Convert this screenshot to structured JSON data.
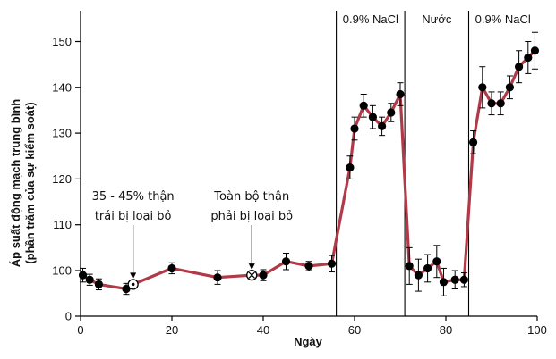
{
  "chart_data": {
    "type": "line",
    "xlabel": "Ngày",
    "ylabel_line1": "Áp suất động mạch trung bình",
    "ylabel_line2": "(phần trăm của sự kiểm soát)",
    "xlim": [
      0,
      100
    ],
    "ylim": [
      0,
      155
    ],
    "xticks": [
      0,
      20,
      40,
      60,
      80,
      100
    ],
    "yticks": [
      0,
      100,
      110,
      120,
      130,
      140,
      150
    ],
    "grid": false,
    "line_color": "#b03a48",
    "marker_color": "#000000",
    "phase_boundaries": [
      56,
      71,
      85
    ],
    "phases": [
      {
        "label": "0.9% NaCl",
        "x_start": 56,
        "x_end": 71
      },
      {
        "label": "Nước",
        "x_start": 71,
        "x_end": 85
      },
      {
        "label": "0.9% NaCl",
        "x_start": 85,
        "x_end": 100
      }
    ],
    "annotations": [
      {
        "line1": "35 - 45% thận",
        "line2": "trái bị loại bỏ",
        "x": 11.5,
        "y": 97
      },
      {
        "line1": "Toàn bộ thận",
        "line2": "phải bị loại bỏ",
        "x": 37.5,
        "y": 99
      }
    ],
    "points": [
      {
        "x": 0.5,
        "y": 99,
        "err": 1.5
      },
      {
        "x": 2,
        "y": 98,
        "err": 1.2
      },
      {
        "x": 4,
        "y": 97,
        "err": 1.2
      },
      {
        "x": 10,
        "y": 96,
        "err": 1.2
      },
      {
        "x": 11.5,
        "y": 97,
        "err": 0,
        "marker": "dot-circle"
      },
      {
        "x": 20,
        "y": 100.5,
        "err": 1.2
      },
      {
        "x": 30,
        "y": 98.5,
        "err": 1.5
      },
      {
        "x": 37.5,
        "y": 99,
        "err": 0,
        "marker": "cross-circle"
      },
      {
        "x": 40,
        "y": 99,
        "err": 1.2
      },
      {
        "x": 45,
        "y": 102,
        "err": 1.8
      },
      {
        "x": 50,
        "y": 101,
        "err": 1.0
      },
      {
        "x": 55,
        "y": 101.5,
        "err": 1.8
      },
      {
        "x": 59,
        "y": 122.5,
        "err": 2.5
      },
      {
        "x": 60,
        "y": 131,
        "err": 2.5
      },
      {
        "x": 62,
        "y": 136,
        "err": 2.5
      },
      {
        "x": 64,
        "y": 133.5,
        "err": 2.5
      },
      {
        "x": 66,
        "y": 131.5,
        "err": 2.0
      },
      {
        "x": 68,
        "y": 134.5,
        "err": 2.0
      },
      {
        "x": 70,
        "y": 138.5,
        "err": 2.5
      },
      {
        "x": 72,
        "y": 101,
        "err": 4.0
      },
      {
        "x": 74,
        "y": 99,
        "err": 3.5
      },
      {
        "x": 76,
        "y": 100.5,
        "err": 3.0
      },
      {
        "x": 78,
        "y": 102,
        "err": 3.5
      },
      {
        "x": 79.5,
        "y": 97.5,
        "err": 3.0
      },
      {
        "x": 82,
        "y": 98,
        "err": 2.0
      },
      {
        "x": 84,
        "y": 98,
        "err": 1.5
      },
      {
        "x": 86,
        "y": 128,
        "err": 2.5
      },
      {
        "x": 88,
        "y": 140,
        "err": 4.5
      },
      {
        "x": 90,
        "y": 136.5,
        "err": 2.5
      },
      {
        "x": 92,
        "y": 136.5,
        "err": 2.5
      },
      {
        "x": 94,
        "y": 140,
        "err": 2.5
      },
      {
        "x": 96,
        "y": 144.5,
        "err": 3.5
      },
      {
        "x": 98,
        "y": 146.5,
        "err": 3.5
      },
      {
        "x": 99.5,
        "y": 148,
        "err": 4.0
      }
    ]
  }
}
